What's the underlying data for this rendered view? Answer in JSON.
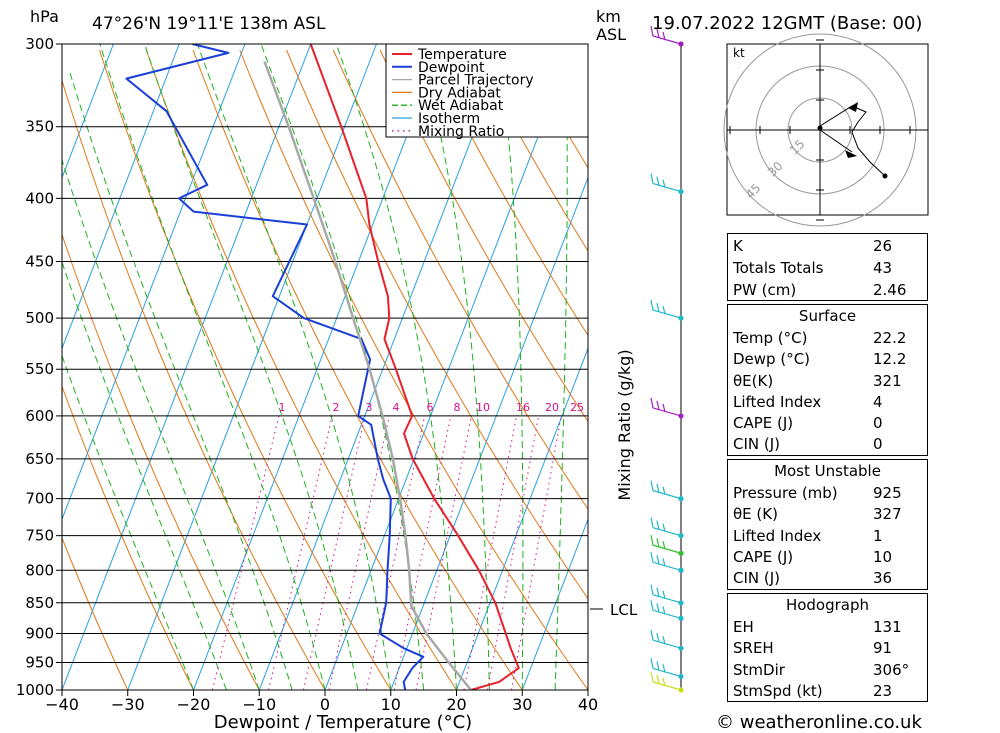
{
  "header": {
    "pressure_unit": "hPa",
    "location": "47°26'N  19°11'E  138m  ASL",
    "height_unit": "km",
    "height_ref": "ASL",
    "datetime": "19.07.2022  12GMT  (Base: 00)"
  },
  "legend": {
    "items": [
      {
        "label": "Temperature",
        "color": "#e8202a"
      },
      {
        "label": "Dewpoint",
        "color": "#1a3ed8"
      },
      {
        "label": "Parcel Trajectory",
        "color": "#a8a8a8"
      },
      {
        "label": "Dry Adiabat",
        "color": "#e07818"
      },
      {
        "label": "Wet Adiabat",
        "color": "#20b020"
      },
      {
        "label": "Isotherm",
        "color": "#2aa0e0"
      },
      {
        "label": "Mixing Ratio",
        "color": "#d0108c"
      }
    ]
  },
  "chart_data": {
    "type": "line",
    "xlabel": "Dewpoint / Temperature (°C)",
    "ylabel": "hPa",
    "y2label": "Mixing Ratio (g/kg)",
    "pressure_levels": [
      300,
      350,
      400,
      450,
      500,
      550,
      600,
      650,
      700,
      750,
      800,
      850,
      900,
      950,
      1000
    ],
    "x_ticks": [
      -40,
      -30,
      -20,
      -10,
      0,
      10,
      20,
      30,
      40
    ],
    "xlim": [
      -40,
      40
    ],
    "ylim": [
      1000,
      300
    ],
    "y_scale": "log",
    "skew": true,
    "mixing_ratio_labels": [
      "1",
      "2",
      "3",
      "4",
      "6",
      "8",
      "10",
      "16",
      "20",
      "25"
    ],
    "lcl_label": "LCL",
    "lcl_pressure": 855,
    "series": [
      {
        "name": "Temperature",
        "points": [
          [
            1000,
            22.2
          ],
          [
            985,
            26
          ],
          [
            960,
            28.2
          ],
          [
            925,
            25.8
          ],
          [
            850,
            20.8
          ],
          [
            800,
            16.4
          ],
          [
            750,
            11.2
          ],
          [
            700,
            5.4
          ],
          [
            650,
            -0.2
          ],
          [
            620,
            -3
          ],
          [
            600,
            -2.8
          ],
          [
            550,
            -8
          ],
          [
            520,
            -11.5
          ],
          [
            500,
            -12
          ],
          [
            480,
            -13.5
          ],
          [
            450,
            -17
          ],
          [
            420,
            -20.5
          ],
          [
            400,
            -22.5
          ],
          [
            350,
            -30.5
          ],
          [
            300,
            -40
          ]
        ]
      },
      {
        "name": "Dewpoint",
        "points": [
          [
            1000,
            12.2
          ],
          [
            985,
            11.5
          ],
          [
            960,
            12
          ],
          [
            940,
            13
          ],
          [
            925,
            9.5
          ],
          [
            900,
            5
          ],
          [
            850,
            4.2
          ],
          [
            800,
            2.5
          ],
          [
            750,
            0.8
          ],
          [
            700,
            -1.2
          ],
          [
            675,
            -3.5
          ],
          [
            650,
            -5.5
          ],
          [
            610,
            -8.5
          ],
          [
            600,
            -11
          ],
          [
            540,
            -12.5
          ],
          [
            520,
            -15
          ],
          [
            500,
            -25
          ],
          [
            480,
            -31
          ],
          [
            420,
            -30
          ],
          [
            410,
            -48
          ],
          [
            400,
            -51
          ],
          [
            390,
            -47.5
          ],
          [
            340,
            -58
          ],
          [
            320,
            -66
          ],
          [
            305,
            -52
          ],
          [
            300,
            -58
          ]
        ]
      },
      {
        "name": "Parcel Trajectory",
        "points": [
          [
            1000,
            22.2
          ],
          [
            950,
            17.2
          ],
          [
            900,
            12.1
          ],
          [
            855,
            8.2
          ],
          [
            800,
            5.8
          ],
          [
            750,
            3.2
          ],
          [
            700,
            0.2
          ],
          [
            650,
            -3.2
          ],
          [
            600,
            -7.3
          ],
          [
            550,
            -12
          ],
          [
            500,
            -17.5
          ],
          [
            450,
            -23.5
          ],
          [
            400,
            -30.5
          ],
          [
            350,
            -38.5
          ],
          [
            310,
            -46
          ]
        ]
      }
    ],
    "wind_barb_pressures": [
      300,
      395,
      500,
      600,
      700,
      750,
      775,
      800,
      850,
      875,
      925,
      975,
      1000
    ]
  },
  "hodograph": {
    "unit": "kt",
    "ring_labels": [
      "15",
      "30",
      "45"
    ]
  },
  "indices": {
    "k_label": "K",
    "k_value": "26",
    "tt_label": "Totals Totals",
    "tt_value": "43",
    "pw_label": "PW (cm)",
    "pw_value": "2.46"
  },
  "surface": {
    "title": "Surface",
    "rows": [
      {
        "label": "Temp (°C)",
        "value": "22.2"
      },
      {
        "label": "Dewp (°C)",
        "value": "12.2"
      },
      {
        "label": "θE(K)",
        "value": "321"
      },
      {
        "label": "Lifted Index",
        "value": "4"
      },
      {
        "label": "CAPE (J)",
        "value": "0"
      },
      {
        "label": "CIN (J)",
        "value": "0"
      }
    ]
  },
  "most_unstable": {
    "title": "Most Unstable",
    "rows": [
      {
        "label": "Pressure (mb)",
        "value": "925"
      },
      {
        "label": "θE (K)",
        "value": "327"
      },
      {
        "label": "Lifted Index",
        "value": "1"
      },
      {
        "label": "CAPE (J)",
        "value": "10"
      },
      {
        "label": "CIN (J)",
        "value": "36"
      }
    ]
  },
  "hodo_table": {
    "title": "Hodograph",
    "rows": [
      {
        "label": "EH",
        "value": "131"
      },
      {
        "label": "SREH",
        "value": "91"
      },
      {
        "label": "StmDir",
        "value": "306°"
      },
      {
        "label": "StmSpd (kt)",
        "value": "23"
      }
    ]
  },
  "footer": {
    "credit": "© weatheronline.co.uk"
  }
}
